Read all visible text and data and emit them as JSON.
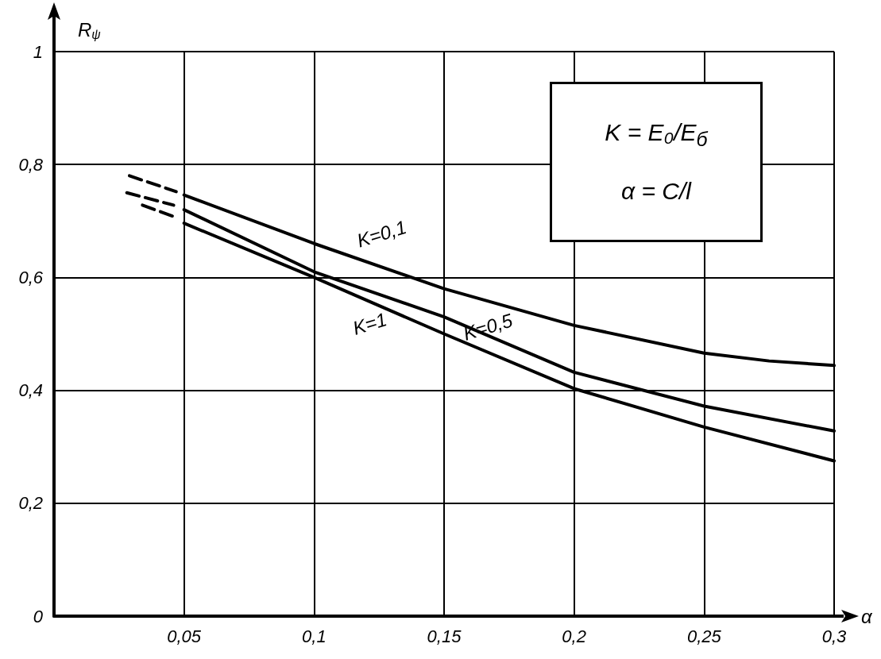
{
  "chart_data": {
    "type": "line",
    "xlabel": "α",
    "ylabel": "R$_{ψ}$",
    "xlim": [
      0,
      0.3
    ],
    "ylim": [
      0,
      1
    ],
    "xticks": [
      {
        "value": 0.05,
        "label": "0,05"
      },
      {
        "value": 0.1,
        "label": "0,1"
      },
      {
        "value": 0.15,
        "label": "0,15"
      },
      {
        "value": 0.2,
        "label": "0,2"
      },
      {
        "value": 0.25,
        "label": "0,25"
      },
      {
        "value": 0.3,
        "label": "0,3"
      }
    ],
    "yticks": [
      0,
      {
        "value": 0.2,
        "label": "0,2"
      },
      {
        "value": 0.4,
        "label": "0,4"
      },
      {
        "value": 0.6,
        "label": "0,6"
      },
      {
        "value": 0.8,
        "label": "0,8"
      },
      1
    ],
    "grid": true,
    "line_style": "solid",
    "series": [
      {
        "name": "K=0,1",
        "color": "#000000",
        "x": [
          0.05,
          0.1,
          0.15,
          0.2,
          0.25,
          0.275,
          0.3
        ],
        "values": [
          0.746,
          0.66,
          0.58,
          0.515,
          0.466,
          0.452,
          0.444
        ]
      },
      {
        "name": "K=0,5",
        "color": "#000000",
        "x": [
          0.05,
          0.1,
          0.15,
          0.2,
          0.25,
          0.3
        ],
        "values": [
          0.72,
          0.61,
          0.53,
          0.432,
          0.372,
          0.328
        ]
      },
      {
        "name": "K=1",
        "color": "#000000",
        "x": [
          0.05,
          0.1,
          0.15,
          0.2,
          0.25,
          0.3
        ],
        "values": [
          0.696,
          0.6,
          0.5,
          0.403,
          0.335,
          0.275
        ]
      },
      {
        "color": "#000000",
        "line_style": "dashed",
        "x": [
          0.029,
          0.047
        ],
        "values": [
          0.78,
          0.752
        ]
      },
      {
        "color": "#000000",
        "line_style": "dashed",
        "x": [
          0.028,
          0.046
        ],
        "values": [
          0.75,
          0.728
        ]
      },
      {
        "color": "#000000",
        "line_style": "dashed",
        "x": [
          0.034,
          0.046
        ],
        "values": [
          0.728,
          0.708
        ]
      }
    ],
    "annotations": [
      "K = E₀/E$_{б}$",
      "α = C/l"
    ]
  }
}
